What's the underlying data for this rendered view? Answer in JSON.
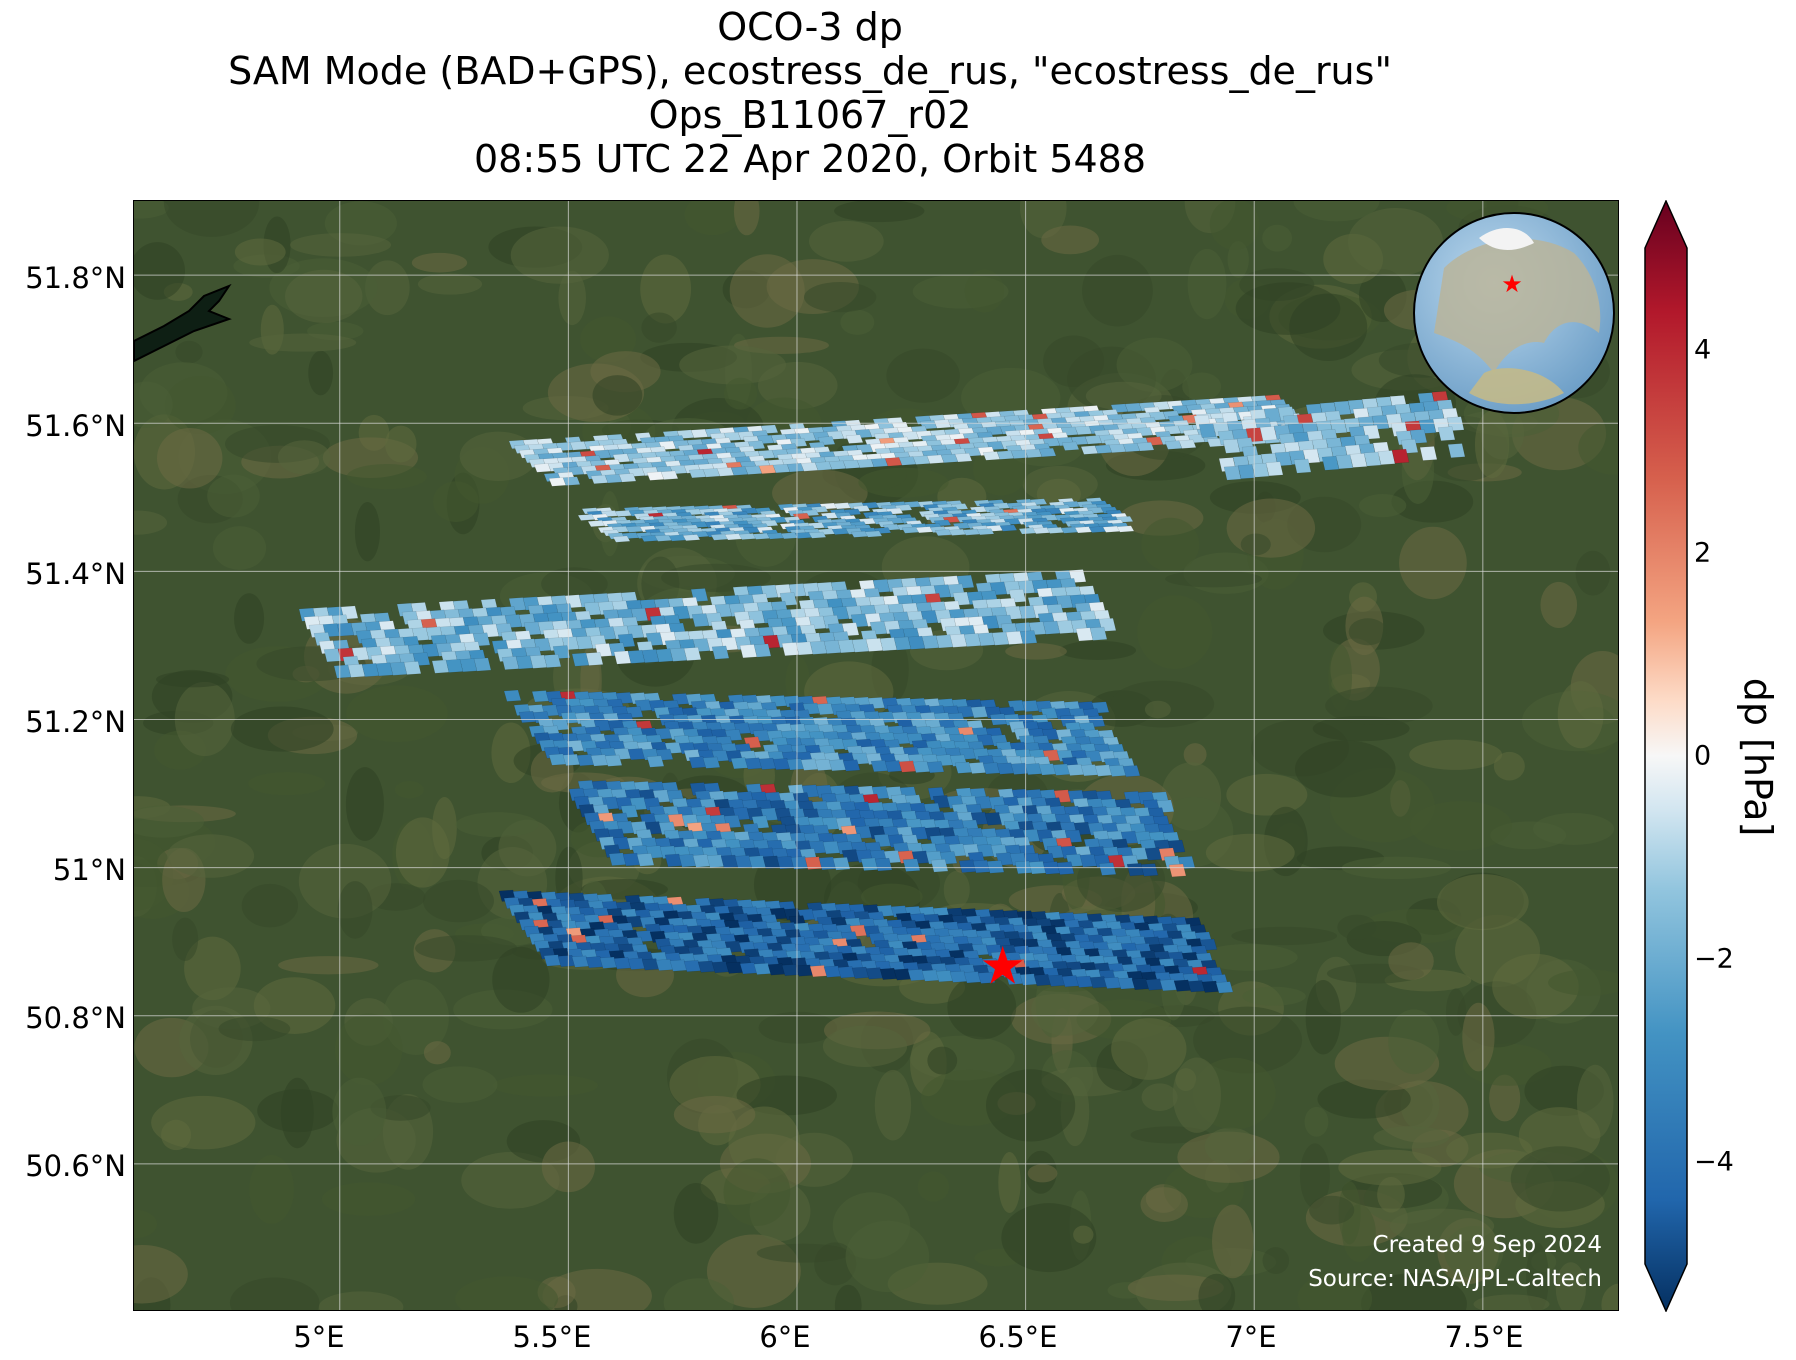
{
  "title": {
    "line1": "OCO-3 dp",
    "line2": "SAM Mode (BAD+GPS), ecostress_de_rus, \"ecostress_de_rus\"",
    "line3": "Ops_B11067_r02",
    "line4": "08:55 UTC 22 Apr 2020, Orbit 5488"
  },
  "map": {
    "xticks": [
      "5°E",
      "5.5°E",
      "6°E",
      "6.5°E",
      "7°E",
      "7.5°E"
    ],
    "yticks": [
      "51.8°N",
      "51.6°N",
      "51.4°N",
      "51.2°N",
      "51°N",
      "50.8°N",
      "50.6°N"
    ],
    "lon_range": [
      4.55,
      7.8
    ],
    "lat_range": [
      50.4,
      51.9
    ],
    "target_marker": {
      "lon": 6.45,
      "lat": 50.865,
      "symbol": "star",
      "color": "#ff0000"
    },
    "colors": {
      "land": "#3f5330",
      "grid": "#dddddd",
      "marker": "#ff0000"
    }
  },
  "credits": {
    "created": "Created 9 Sep 2024",
    "source": "Source: NASA/JPL-Caltech"
  },
  "colorbar": {
    "label": "dp [hPa]",
    "range": [
      -5,
      5
    ],
    "ticks": [
      "4",
      "2",
      "0",
      "−2",
      "−4"
    ],
    "tick_values": [
      4,
      2,
      0,
      -2,
      -4
    ],
    "extend": "both",
    "colormap": "RdBu_r"
  },
  "inset_globe": {
    "icon": "globe-icon",
    "marker": "star"
  }
}
